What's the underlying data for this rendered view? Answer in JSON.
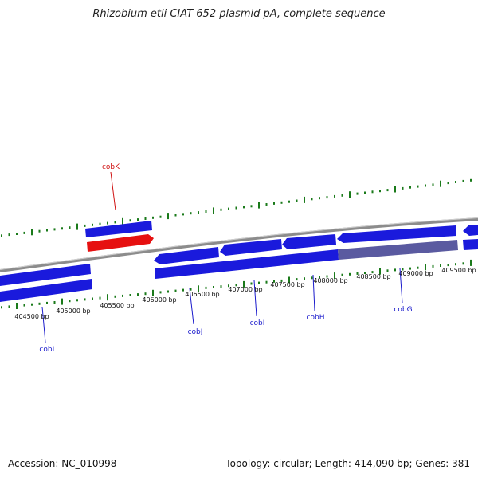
{
  "title": "Rhizobium etli CIAT 652 plasmid pA, complete sequence",
  "accession": "Accession: NC_010998",
  "summary": "Topology: circular; Length: 414,090 bp; Genes: 381",
  "colors": {
    "backbone": "#8c8c8c",
    "gene": "#1a1adc",
    "highlight": "#e61010",
    "overlap": "#5a5aa0",
    "tick": "#1a7a1a",
    "label_line_red": "#d01010",
    "label_line_blue": "#1a1acc"
  },
  "scale_ticks": [
    "404500 bp",
    "405000 bp",
    "405500 bp",
    "406000 bp",
    "406500 bp",
    "407000 bp",
    "407500 bp",
    "408000 bp",
    "408500 bp",
    "409000 bp",
    "409500 bp"
  ],
  "genes": [
    {
      "name": "cobK",
      "color": "red"
    },
    {
      "name": "cobL",
      "color": "blue"
    },
    {
      "name": "cobJ",
      "color": "blue"
    },
    {
      "name": "cobI",
      "color": "blue"
    },
    {
      "name": "cobH",
      "color": "blue"
    },
    {
      "name": "cobG",
      "color": "blue"
    }
  ]
}
